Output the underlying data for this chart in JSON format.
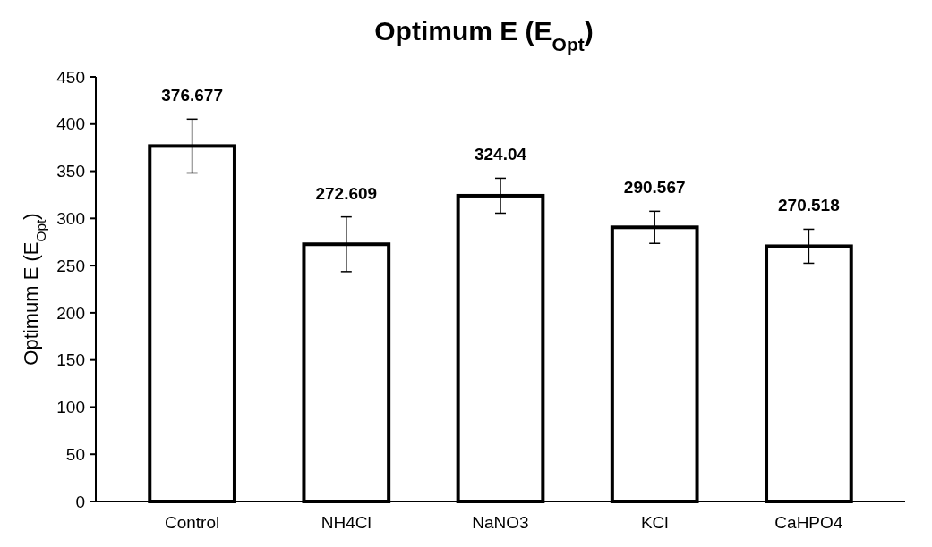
{
  "chart_data": {
    "type": "bar",
    "title": "Optimum E (E$_{Opt}$)",
    "ylabel": "Optimum E (E$_{Opt}$)",
    "categories": [
      "Control",
      "NH4Cl",
      "NaNO3",
      "KCl",
      "CaHPO4"
    ],
    "values": [
      376.677,
      272.609,
      324.04,
      290.567,
      270.518
    ],
    "errors": [
      28.5,
      29,
      18.5,
      17,
      18
    ],
    "color": "#ffffff",
    "ylim": [
      0,
      450
    ],
    "yticks": [
      0,
      50,
      100,
      150,
      200,
      250,
      300,
      350,
      400,
      450
    ],
    "data_labels": true
  }
}
